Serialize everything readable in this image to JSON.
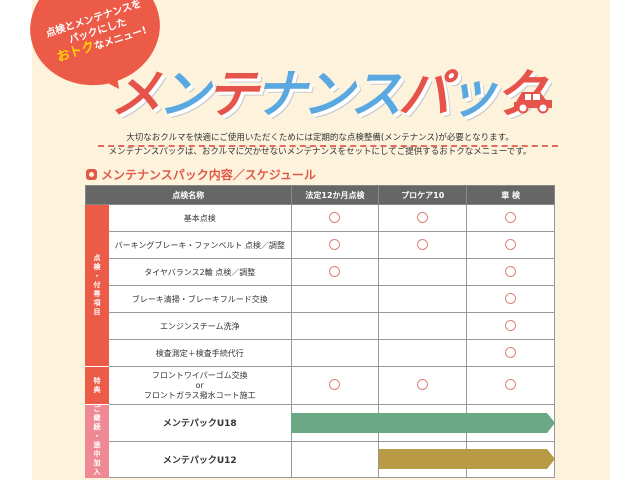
{
  "bubble": {
    "line1": "点検とメンテナンスを",
    "line2": "パックにした",
    "highlight": "おトク",
    "line3": "なメニュー!"
  },
  "title": {
    "chars": [
      "メ",
      "ン",
      "テ",
      "ナ",
      "ン",
      "ス",
      "パ",
      "ッ",
      "ク"
    ],
    "colors": [
      "#e5534b",
      "#5aa8e0",
      "#e5534b",
      "#5aa8e0",
      "#5aa8e0",
      "#5aa8e0",
      "#e5534b",
      "#5aa8e0",
      "#e5534b"
    ]
  },
  "description": {
    "line1": "大切なおクルマを快適にご使用いただくためには定期的な点検整備(メンテナンス)が必要となります。",
    "line2": "メンテナンスパックは、おクルマに欠かせないメンテナンスをセットにしてご提供するおトクなメニューです。"
  },
  "section_title": "メンテナンスパック内容／スケジュール",
  "table": {
    "headers": [
      "点検名称",
      "法定12か月点検",
      "プロケア10",
      "車 検"
    ],
    "categories": {
      "inspection": "点検・付帯項目",
      "bonus": "特典",
      "continue": "ご継続・途中加入"
    },
    "rows": [
      {
        "name": "基本点検",
        "marks": [
          true,
          true,
          true
        ]
      },
      {
        "name": "パーキングブレーキ・ファンベルト 点検／調整",
        "marks": [
          true,
          true,
          true
        ]
      },
      {
        "name": "タイヤバランス2輪 点検／調整",
        "marks": [
          true,
          false,
          true
        ]
      },
      {
        "name": "ブレーキ清掃・ブレーキフルード交換",
        "marks": [
          false,
          false,
          true
        ]
      },
      {
        "name": "エンジンスチーム洗浄",
        "marks": [
          false,
          false,
          true
        ]
      },
      {
        "name": "検査測定＋検査手続代行",
        "marks": [
          false,
          false,
          true
        ]
      }
    ],
    "bonus_row": {
      "line1": "フロントワイパーゴム交換",
      "or": "or",
      "line2": "フロントガラス撥水コート施工",
      "marks": [
        true,
        true,
        true
      ]
    },
    "packs": [
      {
        "name": "メンテパックU18",
        "covers_from": "法定12か月点検",
        "color": "#6aa983"
      },
      {
        "name": "メンテパックU12",
        "covers_from": "プロケア10",
        "color": "#b89b44"
      }
    ]
  },
  "mark_color": "#d98478",
  "accent": "#ec5a48"
}
